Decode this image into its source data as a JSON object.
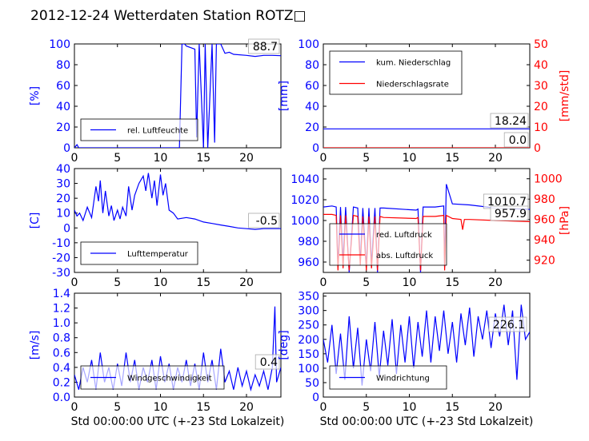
{
  "title": "2012-12-24 Wetterdaten Station ROTZ□",
  "colors": {
    "blue": "#0000ff",
    "red": "#ff0000",
    "black": "#000000"
  },
  "chart_data": [
    {
      "id": "humidity",
      "type": "line",
      "xlim": [
        0,
        24
      ],
      "x_ticks": [
        0,
        5,
        10,
        15,
        20
      ],
      "ylim": [
        0,
        100
      ],
      "y_ticks": [
        0,
        20,
        40,
        60,
        80,
        100
      ],
      "ylabel": "[%]",
      "legend": [
        "rel. Luftfeuchte"
      ],
      "legend_position": "lower-left",
      "value_label": "88.7",
      "series": [
        {
          "name": "rel. Luftfeuchte",
          "color": "#0000ff",
          "x": [
            0,
            0.3,
            0.5,
            1,
            12.2,
            12.5,
            12.8,
            13,
            14,
            14.2,
            14.5,
            15,
            15.2,
            15.5,
            16,
            16.3,
            16.5,
            17,
            17.5,
            18,
            18.5,
            20,
            21,
            22,
            23,
            24
          ],
          "y": [
            0,
            3,
            0,
            0,
            0,
            100,
            100,
            98,
            95,
            10,
            100,
            0,
            100,
            0,
            100,
            5,
            100,
            100,
            91,
            92,
            90,
            89,
            88,
            89,
            89,
            88.7
          ]
        }
      ]
    },
    {
      "id": "precipitation",
      "type": "line",
      "xlim": [
        0,
        24
      ],
      "x_ticks": [
        0,
        5,
        10,
        15,
        20
      ],
      "ylim": [
        0,
        100
      ],
      "y_ticks": [
        0,
        20,
        40,
        60,
        80,
        100
      ],
      "ylabel": "[mm]",
      "y2lim": [
        0,
        50
      ],
      "y2_ticks": [
        0,
        10,
        20,
        30,
        40,
        50
      ],
      "y2label": "[mm/std]",
      "legend": [
        "kum. Niederschlag",
        "Niederschlagsrate"
      ],
      "legend_position": "upper-left",
      "value_labels": [
        "18.24",
        "0.0"
      ],
      "series": [
        {
          "name": "kum. Niederschlag",
          "color": "#0000ff",
          "axis": "left",
          "x": [
            0,
            24
          ],
          "y": [
            18.24,
            18.24
          ]
        },
        {
          "name": "Niederschlagsrate",
          "color": "#ff0000",
          "axis": "right",
          "x": [
            0,
            24
          ],
          "y": [
            0,
            0
          ]
        }
      ]
    },
    {
      "id": "temperature",
      "type": "line",
      "xlim": [
        0,
        24
      ],
      "x_ticks": [
        0,
        5,
        10,
        15,
        20
      ],
      "ylim": [
        -30,
        40
      ],
      "y_ticks": [
        -30,
        -20,
        -10,
        0,
        10,
        20,
        30,
        40
      ],
      "ylabel": "[C]",
      "legend": [
        "Lufttemperatur"
      ],
      "legend_position": "lower-left",
      "value_label": "-0.5",
      "series": [
        {
          "name": "Lufttemperatur",
          "color": "#0000ff",
          "x": [
            0,
            0.3,
            0.6,
            1,
            1.5,
            2,
            2.5,
            2.8,
            3,
            3.3,
            3.6,
            4,
            4.3,
            4.6,
            5,
            5.3,
            5.6,
            6,
            6.3,
            6.7,
            7,
            7.5,
            8,
            8.3,
            8.6,
            9,
            9.3,
            9.6,
            10,
            10.3,
            10.6,
            11,
            11.5,
            12,
            13,
            14,
            15,
            16,
            17,
            18,
            19,
            20,
            21,
            22,
            23,
            24
          ],
          "y": [
            12,
            8,
            10,
            5,
            14,
            7,
            28,
            18,
            32,
            10,
            25,
            8,
            15,
            5,
            12,
            6,
            14,
            8,
            28,
            12,
            22,
            30,
            35,
            25,
            37,
            20,
            32,
            15,
            36,
            22,
            30,
            12,
            10,
            6,
            7,
            6,
            4,
            3,
            2,
            1,
            0,
            -0.5,
            -1,
            -0.5,
            -0.5,
            -0.5
          ]
        }
      ]
    },
    {
      "id": "pressure",
      "type": "line",
      "xlim": [
        0,
        24
      ],
      "x_ticks": [
        0,
        5,
        10,
        15,
        20
      ],
      "ylim": [
        950,
        1050
      ],
      "y_ticks": [
        960,
        980,
        1000,
        1020,
        1040
      ],
      "ylabel": "",
      "y2lim": [
        908,
        1010
      ],
      "y2_ticks": [
        920,
        940,
        960,
        980,
        1000
      ],
      "y2label": "[hPa]",
      "legend": [
        "red. Luftdruck",
        "abs. Luftdruck"
      ],
      "legend_position": "lower-left",
      "value_labels": [
        "1010.7",
        "957.9"
      ],
      "series": [
        {
          "name": "red. Luftdruck",
          "color": "#0000ff",
          "axis": "left",
          "x": [
            0,
            1,
            1.5,
            1.7,
            2,
            2.3,
            2.6,
            3,
            3.5,
            4,
            4.3,
            4.6,
            5,
            5.3,
            5.6,
            6,
            6.3,
            6.6,
            7,
            10.8,
            11,
            11.3,
            11.6,
            12,
            13,
            14,
            14.1,
            14.3,
            15,
            17,
            20,
            24
          ],
          "y": [
            1013,
            1014,
            1013,
            955,
            1013,
            960,
            1013,
            950,
            1013,
            1012,
            960,
            1012,
            955,
            1012,
            958,
            1012,
            950,
            1012,
            1012,
            1010,
            1011,
            950,
            1013,
            1013,
            1013,
            1014,
            955,
            1035,
            1016,
            1015,
            1012,
            1010.7
          ]
        },
        {
          "name": "abs. Luftdruck",
          "color": "#ff0000",
          "axis": "right",
          "x": [
            0,
            1,
            1.5,
            1.7,
            2,
            2.3,
            2.6,
            3,
            3.5,
            4,
            4.3,
            4.6,
            5,
            5.3,
            5.6,
            6,
            6.3,
            6.6,
            7,
            10.8,
            11,
            11.3,
            11.6,
            12,
            13,
            14,
            14.1,
            14.3,
            15,
            16,
            16.2,
            16.4,
            17,
            20,
            24
          ],
          "y": [
            965,
            965,
            964,
            910,
            964,
            912,
            964,
            910,
            964,
            963,
            915,
            963,
            910,
            963,
            912,
            963,
            910,
            963,
            962,
            961,
            962,
            910,
            963,
            963,
            963,
            964,
            910,
            964,
            961,
            960,
            950,
            960,
            960,
            959,
            957.9
          ]
        }
      ]
    },
    {
      "id": "wind_speed",
      "type": "line",
      "xlim": [
        0,
        24
      ],
      "x_ticks": [
        0,
        5,
        10,
        15,
        20
      ],
      "xlabel": "Std 00:00:00 UTC (+-23 Std Lokalzeit)",
      "ylim": [
        0,
        1.4
      ],
      "y_ticks": [
        0.0,
        0.2,
        0.4,
        0.6,
        0.8,
        1.0,
        1.2,
        1.4
      ],
      "ylabel": "[m/s]",
      "legend": [
        "Windgeschwindigkeit"
      ],
      "legend_position": "lower-left",
      "value_label": "0.4",
      "series": [
        {
          "name": "Windgeschwindigkeit",
          "color": "#0000ff",
          "x": [
            0,
            0.5,
            1,
            1.5,
            2,
            2.5,
            3,
            3.5,
            4,
            4.5,
            5,
            5.5,
            6,
            6.5,
            7,
            7.5,
            8,
            8.5,
            9,
            9.5,
            10,
            10.5,
            11,
            11.5,
            12,
            12.5,
            13,
            13.5,
            14,
            14.5,
            15,
            15.5,
            16,
            16.5,
            17,
            17.5,
            18,
            18.5,
            19,
            19.5,
            20,
            20.5,
            21,
            21.5,
            22,
            22.5,
            23,
            23.3,
            23.5,
            24
          ],
          "y": [
            0.3,
            0.1,
            0.4,
            0.2,
            0.5,
            0.1,
            0.6,
            0.2,
            0.4,
            0.1,
            0.45,
            0.15,
            0.6,
            0.2,
            0.5,
            0.1,
            0.4,
            0.2,
            0.5,
            0.1,
            0.55,
            0.2,
            0.45,
            0.1,
            0.4,
            0.2,
            0.5,
            0.15,
            0.45,
            0.1,
            0.6,
            0.2,
            0.5,
            0.1,
            0.65,
            0.2,
            0.35,
            0.1,
            0.4,
            0.15,
            0.35,
            0.1,
            0.3,
            0.15,
            0.35,
            0.1,
            0.4,
            1.22,
            0.2,
            0.4
          ]
        }
      ]
    },
    {
      "id": "wind_direction",
      "type": "line",
      "xlim": [
        0,
        24
      ],
      "x_ticks": [
        0,
        5,
        10,
        15,
        20
      ],
      "xlabel": "Std 00:00:00 UTC (+-23 Std Lokalzeit)",
      "ylim": [
        0,
        360
      ],
      "y_ticks": [
        0,
        50,
        100,
        150,
        200,
        250,
        300,
        350
      ],
      "ylabel": "[deg]",
      "legend": [
        "Windrichtung"
      ],
      "legend_position": "lower-left",
      "value_label": "226.1",
      "series": [
        {
          "name": "Windrichtung",
          "color": "#0000ff",
          "x": [
            0,
            0.5,
            1,
            1.5,
            2,
            2.5,
            3,
            3.5,
            4,
            4.5,
            5,
            5.5,
            6,
            6.5,
            7,
            7.5,
            8,
            8.5,
            9,
            9.5,
            10,
            10.5,
            11,
            11.5,
            12,
            12.5,
            13,
            13.5,
            14,
            14.5,
            15,
            15.5,
            16,
            16.5,
            17,
            17.5,
            18,
            18.5,
            19,
            19.5,
            20,
            20.5,
            21,
            21.5,
            22,
            22.5,
            23,
            23.5,
            24
          ],
          "y": [
            200,
            120,
            250,
            80,
            220,
            60,
            280,
            100,
            240,
            40,
            200,
            90,
            260,
            70,
            230,
            110,
            270,
            80,
            250,
            120,
            280,
            100,
            260,
            140,
            300,
            120,
            280,
            160,
            300,
            150,
            260,
            120,
            290,
            180,
            310,
            140,
            280,
            200,
            300,
            170,
            290,
            210,
            320,
            180,
            300,
            60,
            320,
            200,
            226.1
          ]
        }
      ]
    }
  ]
}
